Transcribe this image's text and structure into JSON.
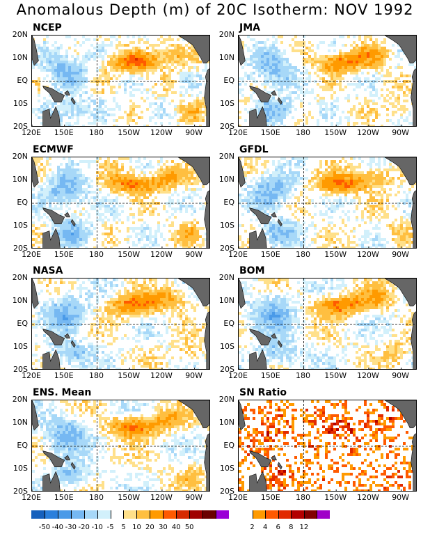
{
  "title": "Anomalous Depth (m) of 20C Isotherm: NOV 1992",
  "colors": {
    "land": "#666666",
    "neg": [
      "#1560bd",
      "#2a7fdc",
      "#4a9ae8",
      "#76b8f2",
      "#a7d8f8",
      "#d2f0fb"
    ],
    "zero": "#ffffff",
    "pos": [
      "#ffe08a",
      "#ffbf40",
      "#ff9a00",
      "#ff5a00",
      "#d62a00",
      "#a00000",
      "#6b0000",
      "#9a00d6"
    ],
    "sn": [
      "#ffffff",
      "#ff9a00",
      "#ff5a00",
      "#e12a00",
      "#b30000",
      "#820000",
      "#a000c8"
    ]
  },
  "chart_data": [
    {
      "type": "heatmap",
      "title": "NCEP"
    },
    {
      "type": "heatmap",
      "title": "JMA"
    },
    {
      "type": "heatmap",
      "title": "ECMWF"
    },
    {
      "type": "heatmap",
      "title": "GFDL"
    },
    {
      "type": "heatmap",
      "title": "NASA"
    },
    {
      "type": "heatmap",
      "title": "BOM"
    },
    {
      "type": "heatmap",
      "title": "ENS. Mean"
    },
    {
      "type": "heatmap",
      "title": "SN Ratio"
    }
  ],
  "axes": {
    "x_ticks": [
      "120E",
      "150E",
      "180",
      "150W",
      "120W",
      "90W"
    ],
    "y_ticks": [
      "20N",
      "10N",
      "EQ",
      "10S",
      "20S"
    ]
  },
  "colorbar_depth": {
    "labels": [
      "-50",
      "-40",
      "-30",
      "-20",
      "-10",
      "-5",
      "5",
      "10",
      "20",
      "30",
      "40",
      "50"
    ]
  },
  "colorbar_sn": {
    "labels": [
      "2",
      "4",
      "6",
      "8",
      "12"
    ]
  }
}
